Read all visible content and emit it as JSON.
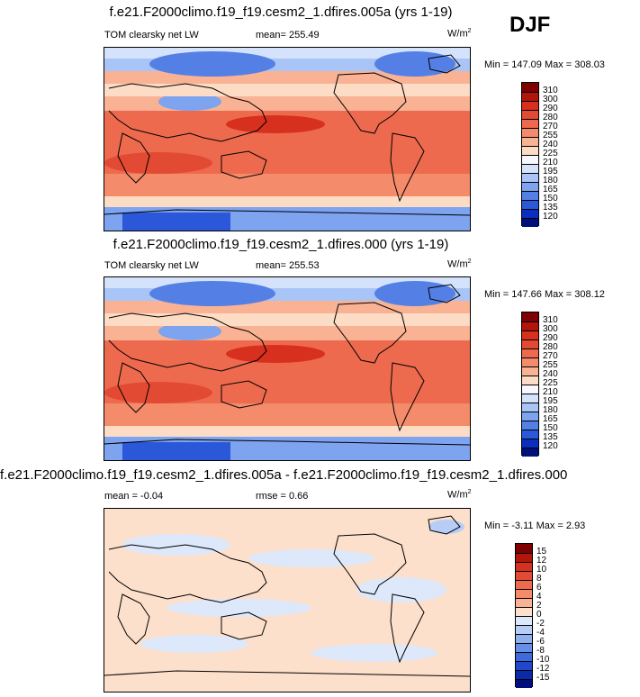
{
  "season": "DJF",
  "chart_data": [
    {
      "type": "heatmap",
      "title": "f.e21.F2000climo.f19_f19.cesm2_1.dfires.005a (yrs 1-19)",
      "variable": "TOM clearsky net LW",
      "mean_label": "mean= 255.49",
      "units_base": "W/m",
      "units_exp": "2",
      "minmax_label": "Min = 147.09 Max = 308.03",
      "min": 147.09,
      "max": 308.03,
      "mean": 255.49,
      "colorbar_ticks": [
        "310",
        "300",
        "290",
        "280",
        "270",
        "255",
        "240",
        "225",
        "210",
        "195",
        "180",
        "165",
        "150",
        "135",
        "120"
      ],
      "colorbar_colors": [
        "#7f0000",
        "#b2160b",
        "#d7301f",
        "#e34a33",
        "#ee6a4e",
        "#f48b6b",
        "#f9b294",
        "#fcdcc4",
        "#f7f7ff",
        "#d5e2fb",
        "#a9c4f6",
        "#7ea3ef",
        "#5480e6",
        "#2a58d9",
        "#0a2fc0",
        "#00107a"
      ]
    },
    {
      "type": "heatmap",
      "title": "f.e21.F2000climo.f19_f19.cesm2_1.dfires.000 (yrs 1-19)",
      "variable": "TOM clearsky net LW",
      "mean_label": "mean= 255.53",
      "units_base": "W/m",
      "units_exp": "2",
      "minmax_label": "Min = 147.66 Max = 308.12",
      "min": 147.66,
      "max": 308.12,
      "mean": 255.53,
      "colorbar_ticks": [
        "310",
        "300",
        "290",
        "280",
        "270",
        "255",
        "240",
        "225",
        "210",
        "195",
        "180",
        "165",
        "150",
        "135",
        "120"
      ],
      "colorbar_colors": [
        "#7f0000",
        "#b2160b",
        "#d7301f",
        "#e34a33",
        "#ee6a4e",
        "#f48b6b",
        "#f9b294",
        "#fcdcc4",
        "#f7f7ff",
        "#d5e2fb",
        "#a9c4f6",
        "#7ea3ef",
        "#5480e6",
        "#2a58d9",
        "#0a2fc0",
        "#00107a"
      ]
    },
    {
      "type": "heatmap",
      "title": "f.e21.F2000climo.f19_f19.cesm2_1.dfires.005a - f.e21.F2000climo.f19_f19.cesm2_1.dfires.000",
      "mean_label": "mean =  -0.04",
      "rmse_label": "rmse =   0.66",
      "units_base": "W/m",
      "units_exp": "2",
      "minmax_label": "Min =  -3.11 Max =   2.93",
      "min": -3.11,
      "max": 2.93,
      "mean": -0.04,
      "rmse": 0.66,
      "colorbar_ticks": [
        "15",
        "12",
        "10",
        "8",
        "6",
        "4",
        "2",
        "0",
        "-2",
        "-4",
        "-6",
        "-8",
        "-10",
        "-12",
        "-15"
      ],
      "colorbar_colors": [
        "#7f0000",
        "#b2160b",
        "#d7301f",
        "#e34a33",
        "#ee6a4e",
        "#f48b6b",
        "#f9b294",
        "#fce0cc",
        "#dde8fb",
        "#b8cdf6",
        "#8fb0ef",
        "#6690e6",
        "#3e6bdb",
        "#1f48cc",
        "#0a2aa8",
        "#00107a"
      ]
    }
  ]
}
